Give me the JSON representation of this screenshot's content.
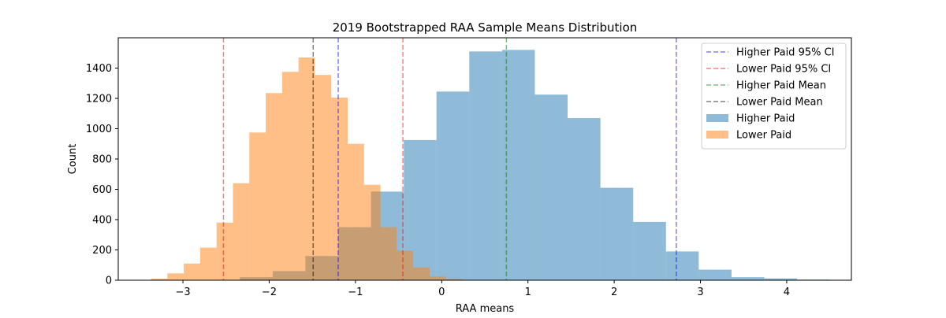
{
  "chart_data": {
    "type": "histogram",
    "title": "2019 Bootstrapped RAA Sample Means Distribution",
    "xlabel": "RAA means",
    "ylabel": "Count",
    "xlim": [
      -3.75,
      4.75
    ],
    "ylim": [
      0,
      1600
    ],
    "xticks": [
      -3,
      -2,
      -1,
      0,
      1,
      2,
      3,
      4
    ],
    "yticks": [
      0,
      200,
      400,
      600,
      800,
      1000,
      1200,
      1400
    ],
    "legend_position": "top-right",
    "grid": false,
    "series": [
      {
        "name": "Higher Paid",
        "kind": "hist",
        "color": "#1f77b4",
        "opacity": 0.5,
        "bins": [
          {
            "x0": -2.34,
            "x1": -1.96,
            "count": 20
          },
          {
            "x0": -1.96,
            "x1": -1.58,
            "count": 60
          },
          {
            "x0": -1.58,
            "x1": -1.2,
            "count": 160
          },
          {
            "x0": -1.2,
            "x1": -0.82,
            "count": 350
          },
          {
            "x0": -0.82,
            "x1": -0.44,
            "count": 585
          },
          {
            "x0": -0.44,
            "x1": -0.06,
            "count": 925
          },
          {
            "x0": -0.06,
            "x1": 0.32,
            "count": 1245
          },
          {
            "x0": 0.32,
            "x1": 0.7,
            "count": 1510
          },
          {
            "x0": 0.7,
            "x1": 1.08,
            "count": 1520
          },
          {
            "x0": 1.08,
            "x1": 1.46,
            "count": 1225
          },
          {
            "x0": 1.46,
            "x1": 1.84,
            "count": 1070
          },
          {
            "x0": 1.84,
            "x1": 2.22,
            "count": 610
          },
          {
            "x0": 2.22,
            "x1": 2.6,
            "count": 385
          },
          {
            "x0": 2.6,
            "x1": 2.98,
            "count": 190
          },
          {
            "x0": 2.98,
            "x1": 3.36,
            "count": 70
          },
          {
            "x0": 3.36,
            "x1": 3.74,
            "count": 20
          },
          {
            "x0": 3.74,
            "x1": 4.12,
            "count": 12
          },
          {
            "x0": 4.12,
            "x1": 4.5,
            "count": 4
          }
        ]
      },
      {
        "name": "Lower Paid",
        "kind": "hist",
        "color": "#ff7f0e",
        "opacity": 0.5,
        "bins": [
          {
            "x0": -3.37,
            "x1": -3.18,
            "count": 10
          },
          {
            "x0": -3.18,
            "x1": -2.99,
            "count": 45
          },
          {
            "x0": -2.99,
            "x1": -2.8,
            "count": 110
          },
          {
            "x0": -2.8,
            "x1": -2.61,
            "count": 215
          },
          {
            "x0": -2.61,
            "x1": -2.42,
            "count": 380
          },
          {
            "x0": -2.42,
            "x1": -2.23,
            "count": 640
          },
          {
            "x0": -2.23,
            "x1": -2.04,
            "count": 975
          },
          {
            "x0": -2.04,
            "x1": -1.85,
            "count": 1235
          },
          {
            "x0": -1.85,
            "x1": -1.66,
            "count": 1375
          },
          {
            "x0": -1.66,
            "x1": -1.47,
            "count": 1470
          },
          {
            "x0": -1.47,
            "x1": -1.28,
            "count": 1355
          },
          {
            "x0": -1.28,
            "x1": -1.09,
            "count": 1205
          },
          {
            "x0": -1.09,
            "x1": -0.9,
            "count": 900
          },
          {
            "x0": -0.9,
            "x1": -0.71,
            "count": 630
          },
          {
            "x0": -0.71,
            "x1": -0.52,
            "count": 350
          },
          {
            "x0": -0.52,
            "x1": -0.33,
            "count": 195
          },
          {
            "x0": -0.33,
            "x1": -0.14,
            "count": 85
          },
          {
            "x0": -0.14,
            "x1": 0.05,
            "count": 25
          },
          {
            "x0": 0.05,
            "x1": 0.24,
            "count": 8
          },
          {
            "x0": 0.24,
            "x1": 0.43,
            "count": 2
          }
        ]
      }
    ],
    "reference_lines": [
      {
        "name": "Higher Paid 95% CI",
        "color": "#0000ff",
        "opacity": 0.5,
        "x": [
          -1.2,
          2.72
        ]
      },
      {
        "name": "Lower Paid 95% CI",
        "color": "#ff0000",
        "opacity": 0.5,
        "x": [
          -2.53,
          -0.45
        ]
      },
      {
        "name": "Higher Paid Mean",
        "color": "#008000",
        "opacity": 0.5,
        "x": [
          0.75
        ]
      },
      {
        "name": "Lower Paid Mean",
        "color": "#000000",
        "opacity": 0.5,
        "x": [
          -1.49
        ]
      }
    ],
    "legend": [
      {
        "label": "Higher Paid 95% CI",
        "kind": "dashed",
        "color": "#0000ff",
        "opacity": 0.5
      },
      {
        "label": "Lower Paid 95% CI",
        "kind": "dashed",
        "color": "#ff0000",
        "opacity": 0.5
      },
      {
        "label": "Higher Paid Mean",
        "kind": "dashed",
        "color": "#008000",
        "opacity": 0.5
      },
      {
        "label": "Lower Paid Mean",
        "kind": "dashed",
        "color": "#000000",
        "opacity": 0.5
      },
      {
        "label": "Higher Paid",
        "kind": "patch",
        "color": "#1f77b4",
        "opacity": 0.5
      },
      {
        "label": "Lower Paid",
        "kind": "patch",
        "color": "#ff7f0e",
        "opacity": 0.5
      }
    ]
  }
}
